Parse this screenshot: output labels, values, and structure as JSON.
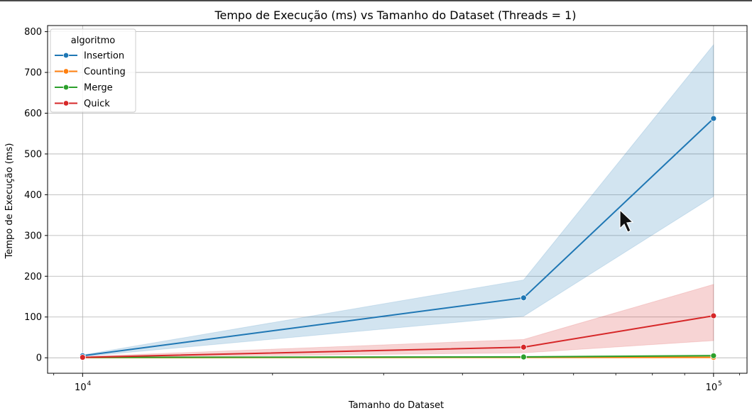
{
  "chart_data": {
    "type": "line",
    "title": "Tempo de Execução (ms) vs Tamanho do Dataset (Threads = 1)",
    "xlabel": "Tamanho do Dataset",
    "ylabel": "Tempo de Execução (ms)",
    "xscale": "log",
    "x": [
      10000,
      50000,
      100000
    ],
    "xlim": [
      8800,
      113000
    ],
    "ylim": [
      -38,
      815
    ],
    "xticks": [
      {
        "value": 10000,
        "base": "10",
        "exp": "4"
      },
      {
        "value": 100000,
        "base": "10",
        "exp": "5"
      }
    ],
    "yticks": [
      0,
      100,
      200,
      300,
      400,
      500,
      600,
      700,
      800
    ],
    "grid": true,
    "legend": {
      "title": "algoritmo",
      "position": "top-left"
    },
    "series": [
      {
        "name": "Insertion",
        "color": "#1f77b4",
        "values": [
          5,
          147,
          587
        ],
        "ci_low": [
          3,
          102,
          396
        ],
        "ci_high": [
          7,
          191,
          768
        ]
      },
      {
        "name": "Counting",
        "color": "#ff7f0e",
        "values": [
          0.5,
          1,
          1
        ],
        "ci_low": [
          0,
          0.5,
          0.5
        ],
        "ci_high": [
          1,
          2,
          2
        ]
      },
      {
        "name": "Merge",
        "color": "#2ca02c",
        "values": [
          1,
          2,
          5
        ],
        "ci_low": [
          0.5,
          1,
          3
        ],
        "ci_high": [
          2,
          4,
          7
        ]
      },
      {
        "name": "Quick",
        "color": "#d62728",
        "values": [
          1,
          26,
          103
        ],
        "ci_low": [
          0.5,
          12,
          42
        ],
        "ci_high": [
          3,
          45,
          180
        ]
      }
    ]
  }
}
